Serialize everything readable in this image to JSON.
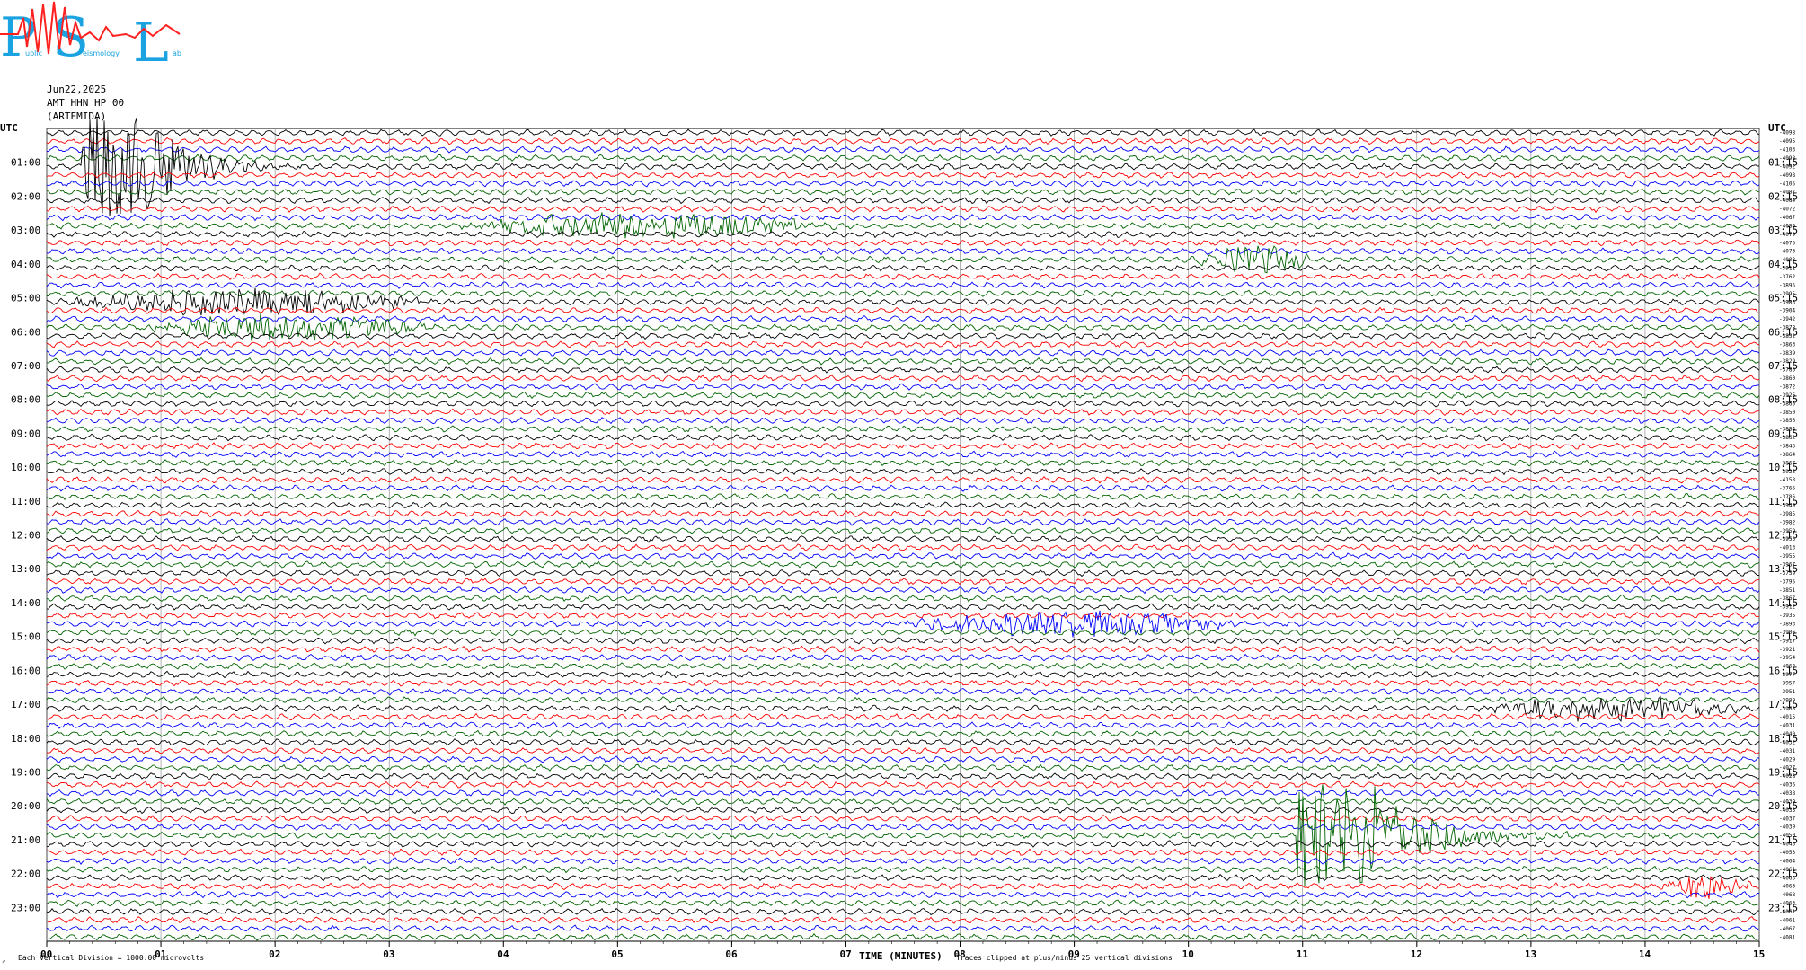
{
  "logo": {
    "letters": [
      "P",
      "S",
      "L"
    ],
    "subtitle_left": "ublic",
    "subtitle_mid": "eismology",
    "subtitle_right": "ab"
  },
  "header": {
    "date": "Jun22,2025",
    "station": "AMT HHN HP 00",
    "name": "(ARTEMIDA)"
  },
  "chart_data": {
    "type": "line",
    "title": "",
    "xlabel": "TIME (MINUTES)",
    "ylabel_left": "UTC",
    "ylabel_right": "UTC",
    "xlim": [
      0,
      15
    ],
    "x_ticks": [
      "00",
      "01",
      "02",
      "03",
      "04",
      "05",
      "06",
      "07",
      "08",
      "09",
      "10",
      "11",
      "12",
      "13",
      "14",
      "15"
    ],
    "left_hour_labels": [
      "01:00",
      "02:00",
      "03:00",
      "04:00",
      "05:00",
      "06:00",
      "07:00",
      "08:00",
      "09:00",
      "10:00",
      "11:00",
      "12:00",
      "13:00",
      "14:00",
      "15:00",
      "16:00",
      "17:00",
      "18:00",
      "19:00",
      "20:00",
      "21:00",
      "22:00",
      "23:00"
    ],
    "right_hour_labels": [
      "01:15",
      "02:15",
      "03:15",
      "04:15",
      "05:15",
      "06:15",
      "07:15",
      "08:15",
      "09:15",
      "10:15",
      "11:15",
      "12:15",
      "13:15",
      "14:15",
      "15:15",
      "16:15",
      "17:15",
      "18:15",
      "19:15",
      "20:15",
      "21:15",
      "22:15",
      "23:15"
    ],
    "trace_count": 96,
    "minutes_per_trace": 15,
    "trace_colors": [
      "#000000",
      "#ff0000",
      "#0000ff",
      "#006400"
    ],
    "trace_offsets": [
      "-4098",
      "-4095",
      "-4103",
      "-4098",
      "-4092",
      "-4098",
      "-4105",
      "-4087",
      "-4084",
      "-4072",
      "-4067",
      "-4080",
      "-4079",
      "-4075",
      "-4073",
      "-4003",
      "-3911",
      "-3762",
      "-3895",
      "-3995",
      "-3983",
      "-3904",
      "-3942",
      "-3878",
      "-3832",
      "-3863",
      "-3839",
      "-3829",
      "-3785",
      "-3860",
      "-3872",
      "-3926",
      "-3865",
      "-3850",
      "-3856",
      "-3884",
      "-3862",
      "-3843",
      "-3864",
      "-3867",
      "-3925",
      "-4158",
      "-3766",
      "-3786",
      "-3949",
      "-3985",
      "-3982",
      "-3959",
      "-3953",
      "-4013",
      "-3955",
      "-3967",
      "-3759",
      "-3795",
      "-3851",
      "-3867",
      "-3912",
      "-3935",
      "-3893",
      "-3906",
      "-3917",
      "-3921",
      "-3954",
      "-4062",
      "-3977",
      "-3957",
      "-3951",
      "-3989",
      "-3968",
      "-4015",
      "-4031",
      "-4040",
      "-4032",
      "-4031",
      "-4029",
      "-4027",
      "-4028",
      "-4036",
      "-4038",
      "-4039",
      "-4033",
      "-4037",
      "-4039",
      "-4050",
      "-4045",
      "-4053",
      "-4064",
      "-4061",
      "-4063",
      "-4063",
      "-4068",
      "-4063",
      "-4061",
      "-4061",
      "-4067",
      "-4081"
    ],
    "events": [
      {
        "trace": 4,
        "start_min": 0.3,
        "end_min": 2.3,
        "amplitude": "clipped",
        "label": ""
      },
      {
        "trace": 11,
        "start_min": 3.5,
        "end_min": 7.0,
        "amplitude": "large",
        "label": ""
      },
      {
        "trace": 15,
        "start_min": 10.0,
        "end_min": 11.2,
        "amplitude": "large",
        "label": ""
      },
      {
        "trace": 20,
        "start_min": 0.0,
        "end_min": 3.5,
        "amplitude": "large",
        "label": ""
      },
      {
        "trace": 23,
        "start_min": 0.7,
        "end_min": 3.5,
        "amplitude": "large",
        "label": ""
      },
      {
        "trace": 58,
        "start_min": 7.4,
        "end_min": 10.5,
        "amplitude": "large",
        "label": ""
      },
      {
        "trace": 68,
        "start_min": 12.5,
        "end_min": 15.0,
        "amplitude": "large",
        "label": ""
      },
      {
        "trace": 83,
        "start_min": 10.95,
        "end_min": 13.5,
        "amplitude": "clipped",
        "label": ""
      },
      {
        "trace": 89,
        "start_min": 14.1,
        "end_min": 15.0,
        "amplitude": "large",
        "label": ""
      }
    ],
    "grid": true
  },
  "footer": {
    "left": "Each Vertical Division = 1000.00 microvolts",
    "right": "Traces clipped at plus/minus 25 vertical divisions",
    "corner": "↗"
  },
  "colors": {
    "black": "#000000",
    "red": "#ff0000",
    "blue": "#0000ff",
    "green": "#006400",
    "logo_blue": "#1aa3e0",
    "logo_red": "#ff2020"
  }
}
